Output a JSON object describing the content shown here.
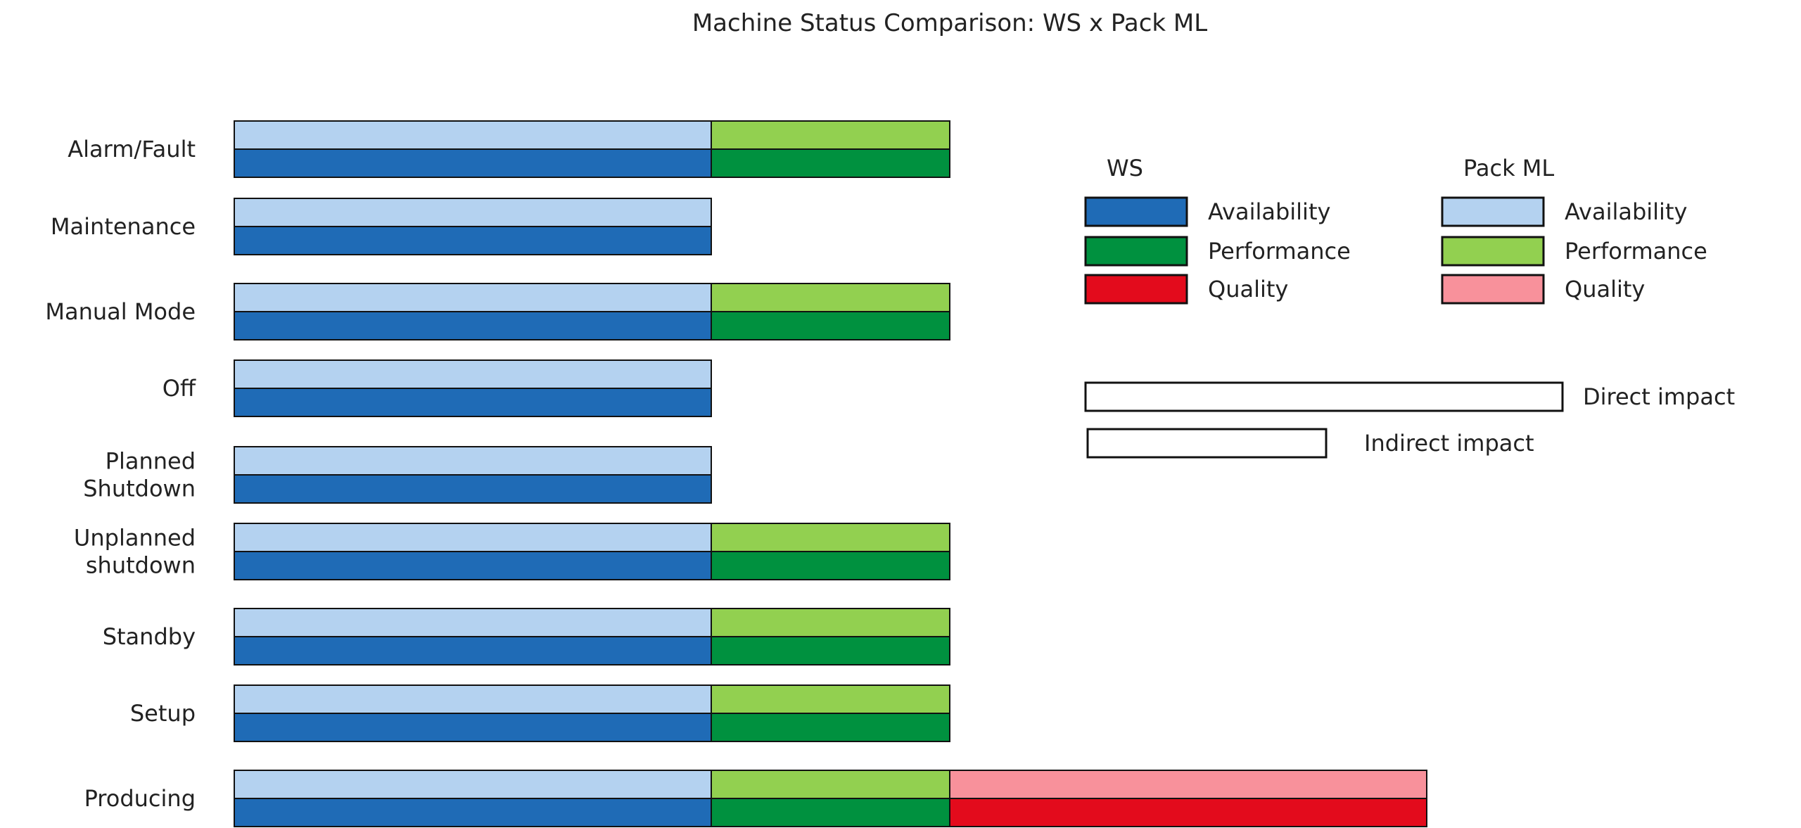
{
  "chart_data": {
    "type": "bar",
    "title": "Machine Status Comparison: WS x Pack ML",
    "categories": [
      [
        "Alarm/Fault"
      ],
      [
        "Maintenance"
      ],
      [
        "Manual Mode"
      ],
      [
        "Off"
      ],
      [
        "Planned",
        "Shutdown"
      ],
      [
        "Unplanned",
        "shutdown"
      ],
      [
        "Standby"
      ],
      [
        "Setup"
      ],
      [
        "Producing"
      ]
    ],
    "stack_segments": [
      "Availability",
      "Performance",
      "Quality"
    ],
    "series": [
      {
        "name": "Pack ML",
        "impact": [
          [
            "direct",
            "indirect",
            null
          ],
          [
            "direct",
            null,
            null
          ],
          [
            "direct",
            "indirect",
            null
          ],
          [
            "direct",
            null,
            null
          ],
          [
            "direct",
            null,
            null
          ],
          [
            "direct",
            "indirect",
            null
          ],
          [
            "direct",
            "indirect",
            null
          ],
          [
            "direct",
            "indirect",
            null
          ],
          [
            "direct",
            "indirect",
            "direct"
          ]
        ],
        "colors": [
          "#b4d2f0",
          "#92d050",
          "#f8919b"
        ]
      },
      {
        "name": "WS",
        "impact": [
          [
            "direct",
            "indirect",
            null
          ],
          [
            "direct",
            null,
            null
          ],
          [
            "direct",
            "indirect",
            null
          ],
          [
            "direct",
            null,
            null
          ],
          [
            "direct",
            null,
            null
          ],
          [
            "direct",
            "indirect",
            null
          ],
          [
            "direct",
            "indirect",
            null
          ],
          [
            "direct",
            "indirect",
            null
          ],
          [
            "direct",
            "indirect",
            "direct"
          ]
        ],
        "colors": [
          "#1f6bb6",
          "#00913f",
          "#e30b1c"
        ]
      }
    ],
    "impact_scale": {
      "direct": 2,
      "indirect": 1
    },
    "legend": {
      "groups": [
        {
          "title": "WS",
          "items": [
            "Availability",
            "Performance",
            "Quality"
          ],
          "colors": [
            "#1f6bb6",
            "#00913f",
            "#e30b1c"
          ]
        },
        {
          "title": "Pack ML",
          "items": [
            "Availability",
            "Performance",
            "Quality"
          ],
          "colors": [
            "#b4d2f0",
            "#92d050",
            "#f8919b"
          ]
        }
      ],
      "impact_items": [
        {
          "key": "direct",
          "label": "Direct impact"
        },
        {
          "key": "indirect",
          "label": "Indirect impact"
        }
      ],
      "placement": "right"
    },
    "grid": false
  }
}
